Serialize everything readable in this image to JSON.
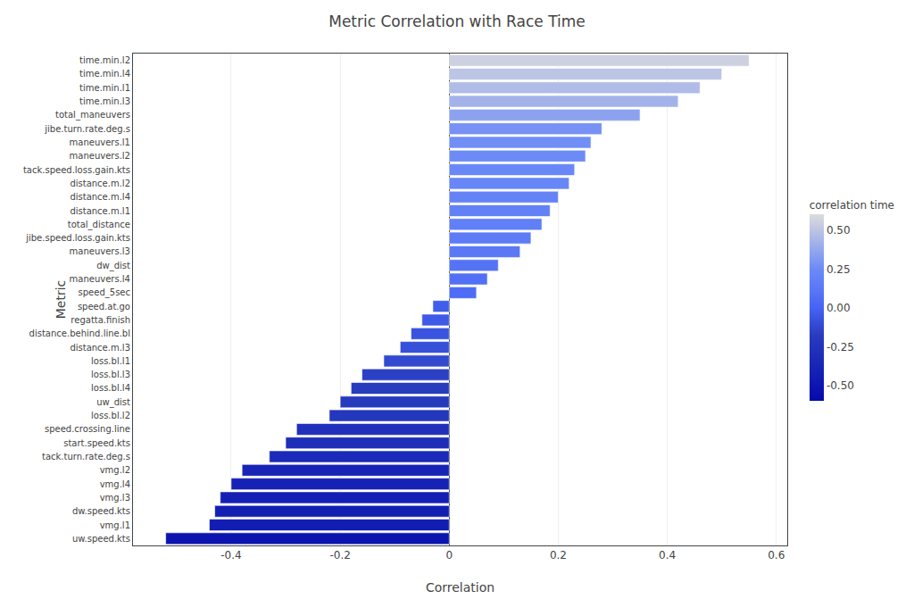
{
  "chart_data": {
    "type": "bar",
    "orientation": "horizontal",
    "title": "Metric Correlation with Race Time",
    "xlabel": "Correlation",
    "ylabel": "Metric",
    "categories": [
      "time.min.l2",
      "time.min.l4",
      "time.min.l1",
      "time.min.l3",
      "total_maneuvers",
      "jibe.turn.rate.deg.s",
      "maneuvers.l1",
      "maneuvers.l2",
      "tack.speed.loss.gain.kts",
      "distance.m.l2",
      "distance.m.l4",
      "distance.m.l1",
      "total_distance",
      "jibe.speed.loss.gain.kts",
      "maneuvers.l3",
      "dw_dist",
      "maneuvers.l4",
      "speed_5sec",
      "speed.at.go",
      "regatta.finish",
      "distance.behind.line.bl",
      "distance.m.l3",
      "loss.bl.l1",
      "loss.bl.l3",
      "loss.bl.l4",
      "uw_dist",
      "loss.bl.l2",
      "speed.crossing.line",
      "start.speed.kts",
      "tack.turn.rate.deg.s",
      "vmg.l2",
      "vmg.l4",
      "vmg.l3",
      "dw.speed.kts",
      "vmg.l1",
      "uw.speed.kts"
    ],
    "values": [
      0.55,
      0.5,
      0.46,
      0.42,
      0.35,
      0.28,
      0.26,
      0.25,
      0.23,
      0.22,
      0.2,
      0.185,
      0.17,
      0.15,
      0.13,
      0.09,
      0.07,
      0.05,
      -0.03,
      -0.05,
      -0.07,
      -0.09,
      -0.12,
      -0.16,
      -0.18,
      -0.2,
      -0.22,
      -0.28,
      -0.3,
      -0.33,
      -0.38,
      -0.4,
      -0.42,
      -0.43,
      -0.44,
      -0.52
    ],
    "xlim": [
      -0.58,
      0.62
    ],
    "xticks": [
      -0.4,
      -0.2,
      0,
      0.2,
      0.4,
      0.6
    ],
    "grid": true,
    "colorbar": {
      "title": "correlation time",
      "range": [
        -0.6,
        0.6
      ],
      "ticks": [
        {
          "value": 0.5,
          "label": "0.50"
        },
        0.25,
        {
          "value": 0.0,
          "label": "0.00"
        },
        -0.25,
        {
          "value": -0.5,
          "label": "-0.50"
        }
      ]
    }
  }
}
